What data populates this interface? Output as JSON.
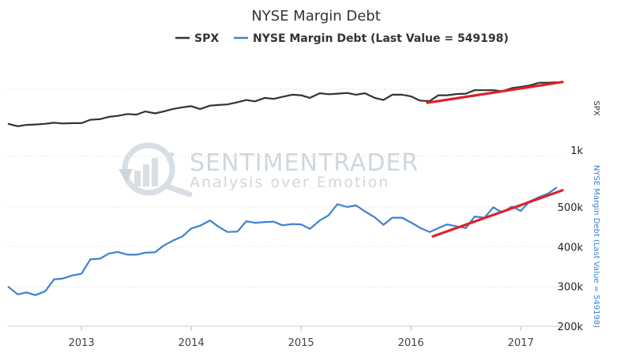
{
  "chart_data": {
    "type": "line",
    "title": "NYSE Margin Debt",
    "legend_position": "top-center",
    "x_ticks": [
      "2013",
      "2014",
      "2015",
      "2016",
      "2017"
    ],
    "x_range": [
      2012.33,
      2017.38
    ],
    "series": [
      {
        "name": "SPX",
        "color": "#333333",
        "axis": "right-top",
        "x": [
          2012.33,
          2012.42,
          2012.5,
          2012.58,
          2012.67,
          2012.75,
          2012.83,
          2012.92,
          2013.0,
          2013.08,
          2013.17,
          2013.25,
          2013.33,
          2013.42,
          2013.5,
          2013.58,
          2013.67,
          2013.75,
          2013.83,
          2013.92,
          2014.0,
          2014.08,
          2014.17,
          2014.25,
          2014.33,
          2014.42,
          2014.5,
          2014.58,
          2014.67,
          2014.75,
          2014.83,
          2014.92,
          2015.0,
          2015.08,
          2015.17,
          2015.25,
          2015.33,
          2015.42,
          2015.5,
          2015.58,
          2015.67,
          2015.75,
          2015.83,
          2015.92,
          2016.0,
          2016.08,
          2016.17,
          2016.25,
          2016.33,
          2016.42,
          2016.5,
          2016.58,
          2016.67,
          2016.75,
          2016.83,
          2016.92,
          2017.0,
          2017.08,
          2017.17,
          2017.25,
          2017.33
        ],
        "values": [
          1400,
          1365,
          1385,
          1390,
          1400,
          1415,
          1405,
          1410,
          1410,
          1460,
          1470,
          1505,
          1520,
          1550,
          1540,
          1590,
          1560,
          1590,
          1630,
          1660,
          1680,
          1630,
          1690,
          1700,
          1710,
          1750,
          1790,
          1765,
          1830,
          1810,
          1850,
          1890,
          1880,
          1830,
          1920,
          1900,
          1910,
          1925,
          1890,
          1920,
          1830,
          1790,
          1890,
          1890,
          1860,
          1780,
          1770,
          1880,
          1880,
          1905,
          1910,
          1980,
          1980,
          1980,
          1960,
          2025,
          2050,
          2080,
          2140,
          2140,
          2150
        ]
      },
      {
        "name": "NYSE Margin Debt (Last Value = 549198)",
        "color": "#3c82d0",
        "axis": "right-bottom",
        "x": [
          2012.33,
          2012.42,
          2012.5,
          2012.58,
          2012.67,
          2012.75,
          2012.83,
          2012.92,
          2013.0,
          2013.08,
          2013.17,
          2013.25,
          2013.33,
          2013.42,
          2013.5,
          2013.58,
          2013.67,
          2013.75,
          2013.83,
          2013.92,
          2014.0,
          2014.08,
          2014.17,
          2014.25,
          2014.33,
          2014.42,
          2014.5,
          2014.58,
          2014.67,
          2014.75,
          2014.83,
          2014.92,
          2015.0,
          2015.08,
          2015.17,
          2015.25,
          2015.33,
          2015.42,
          2015.5,
          2015.58,
          2015.67,
          2015.75,
          2015.83,
          2015.92,
          2016.0,
          2016.08,
          2016.17,
          2016.25,
          2016.33,
          2016.42,
          2016.5,
          2016.58,
          2016.67,
          2016.75,
          2016.83,
          2016.92,
          2017.0,
          2017.08,
          2017.17,
          2017.25,
          2017.33
        ],
        "values": [
          300000,
          280000,
          285000,
          278000,
          288000,
          318000,
          320000,
          328000,
          332000,
          368000,
          370000,
          383000,
          387000,
          380000,
          380000,
          385000,
          386000,
          403000,
          415000,
          426000,
          446000,
          453000,
          466000,
          450000,
          437000,
          438000,
          464000,
          460000,
          462000,
          463000,
          454000,
          457000,
          456000,
          445000,
          466000,
          479000,
          507000,
          500000,
          504000,
          489000,
          474000,
          455000,
          473000,
          473000,
          461000,
          448000,
          437000,
          447000,
          456000,
          451000,
          447000,
          476000,
          473000,
          499000,
          486000,
          501000,
          490000,
          514000,
          525000,
          534000,
          549198
        ]
      }
    ],
    "axes": {
      "right_top": {
        "title": "SPX",
        "ticks": [
          {
            "value": 1000,
            "label": "1k"
          }
        ]
      },
      "right_bottom": {
        "title": "NYSE Margin Debt (Last Value = 549198)",
        "ticks": [
          {
            "value": 500000,
            "label": "500k"
          },
          {
            "value": 400000,
            "label": "400k"
          },
          {
            "value": 300000,
            "label": "300k"
          },
          {
            "value": 200000,
            "label": "200k"
          }
        ]
      }
    },
    "annotations": [
      {
        "type": "trendline",
        "color": "#e0202a",
        "axis": "right-top",
        "x": [
          2016.15,
          2017.38
        ],
        "y": [
          1740,
          2155
        ]
      },
      {
        "type": "trendline",
        "color": "#e0202a",
        "axis": "right-bottom",
        "x": [
          2016.2,
          2017.38
        ],
        "y": [
          426000,
          542000
        ]
      }
    ],
    "watermark": {
      "brand": "SENTIMENTRADER",
      "tagline": "Analysis over Emotion"
    }
  }
}
